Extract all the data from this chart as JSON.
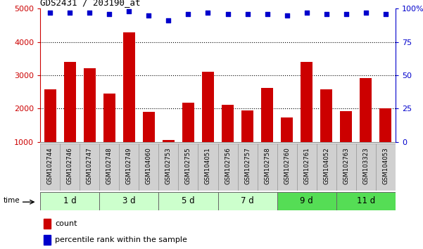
{
  "title": "GDS2431 / 203190_at",
  "samples": [
    "GSM102744",
    "GSM102746",
    "GSM102747",
    "GSM102748",
    "GSM102749",
    "GSM104060",
    "GSM102753",
    "GSM102755",
    "GSM104051",
    "GSM102756",
    "GSM102757",
    "GSM102758",
    "GSM102760",
    "GSM102761",
    "GSM104052",
    "GSM102763",
    "GSM103323",
    "GSM104053"
  ],
  "counts": [
    2580,
    3400,
    3220,
    2460,
    4280,
    1900,
    1050,
    2180,
    3100,
    2120,
    1950,
    2620,
    1740,
    3400,
    2580,
    1920,
    2920,
    2000
  ],
  "percentiles": [
    97,
    97,
    97,
    96,
    98,
    95,
    91,
    96,
    97,
    96,
    96,
    96,
    95,
    97,
    96,
    96,
    97,
    96
  ],
  "groups": [
    {
      "label": "1 d",
      "start": 0,
      "end": 2
    },
    {
      "label": "3 d",
      "start": 3,
      "end": 5
    },
    {
      "label": "5 d",
      "start": 6,
      "end": 8
    },
    {
      "label": "7 d",
      "start": 9,
      "end": 11
    },
    {
      "label": "9 d",
      "start": 12,
      "end": 14
    },
    {
      "label": "11 d",
      "start": 15,
      "end": 17
    }
  ],
  "group_colors": [
    "#ccffcc",
    "#ccffcc",
    "#ccffcc",
    "#ccffcc",
    "#55dd55",
    "#55dd55"
  ],
  "ylim_left": [
    1000,
    5000
  ],
  "ylim_right": [
    0,
    100
  ],
  "bar_color": "#cc0000",
  "dot_color": "#0000cc",
  "bg_color": "#ffffff",
  "grid_color": "#000000",
  "label_bg": "#d0d0d0",
  "time_label_color": "#000000"
}
